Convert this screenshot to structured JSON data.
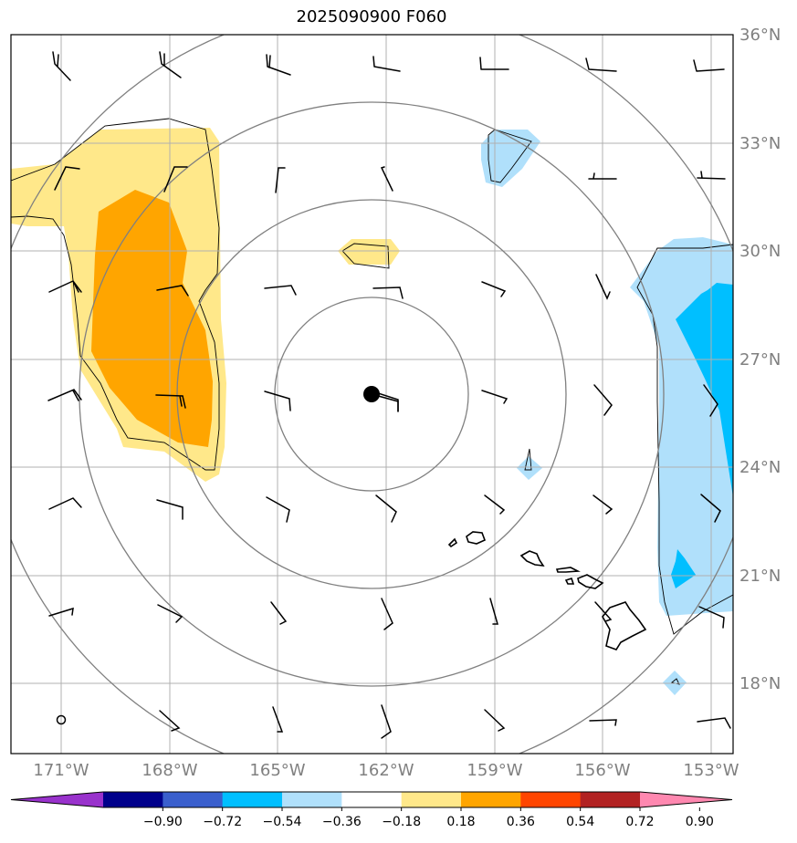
{
  "title": "2025090900 F060",
  "latitude_labels": [
    "36°N",
    "33°N",
    "30°N",
    "27°N",
    "24°N",
    "21°N",
    "18°N"
  ],
  "longitude_labels": [
    "171°W",
    "168°W",
    "165°W",
    "162°W",
    "159°W",
    "156°W",
    "153°W"
  ],
  "colorbar": {
    "ticks": [
      "−0.90",
      "−0.72",
      "−0.54",
      "−0.36",
      "−0.18",
      "0.18",
      "0.36",
      "0.54",
      "0.72",
      "0.90"
    ],
    "colors": [
      "#9932cc",
      "#00008b",
      "#3a5fcd",
      "#00bfff",
      "#b0e0fb",
      "#ffffff",
      "#ffe88a",
      "#ffa500",
      "#ff4500",
      "#b22222",
      "#ff88b0"
    ]
  },
  "shading_colors": {
    "light_yellow": "#ffe88a",
    "orange": "#ffa500",
    "light_blue": "#b0e0fb",
    "deep_sky_blue": "#00bfff"
  },
  "center_marker_icon": "filled-circle-icon"
}
